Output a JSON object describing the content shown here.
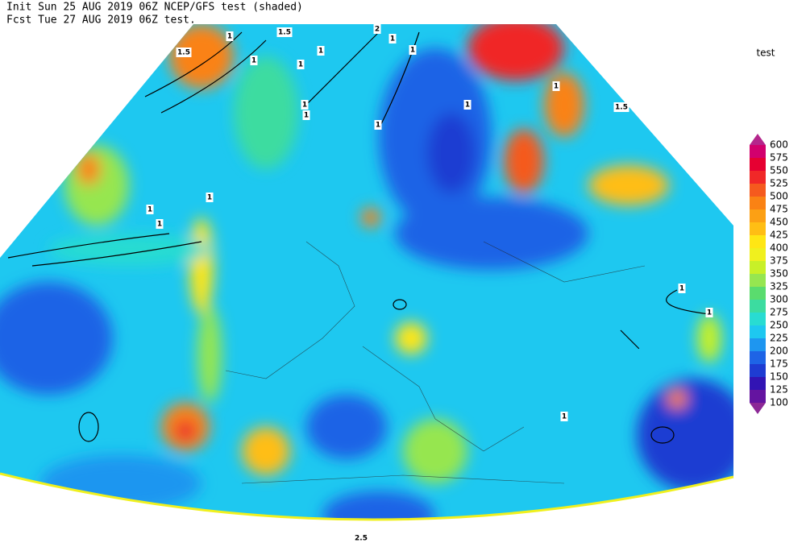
{
  "header": {
    "line1": "Init  Sun 25 AUG 2019 06Z  NCEP/GFS test (shaded)",
    "line2": "Fcst Tue 27 AUG 2019 06Z  test."
  },
  "legend": {
    "title": "test",
    "levels": [
      600,
      575,
      550,
      525,
      500,
      475,
      450,
      425,
      400,
      375,
      350,
      325,
      300,
      275,
      250,
      225,
      200,
      175,
      150,
      125,
      100
    ],
    "colors": [
      "#b4268c",
      "#d2006e",
      "#e60032",
      "#f02828",
      "#f55a1e",
      "#fa8214",
      "#fca014",
      "#ffbe14",
      "#ffe614",
      "#f0f01e",
      "#c8f028",
      "#96e650",
      "#5adc6e",
      "#3cdca0",
      "#28dcd2",
      "#1ec8f0",
      "#1e96f0",
      "#1e64e6",
      "#1e3cd2",
      "#3214b4",
      "#6414a0",
      "#8c2896"
    ]
  },
  "contour_labels": [
    "1",
    "1.5",
    "1",
    "1",
    "1.5",
    "2",
    "1",
    "1",
    "1",
    "1",
    "1.5",
    "1",
    "1",
    "1",
    "1",
    "1",
    "1",
    "1",
    "1",
    "1",
    "1",
    "2.5"
  ]
}
